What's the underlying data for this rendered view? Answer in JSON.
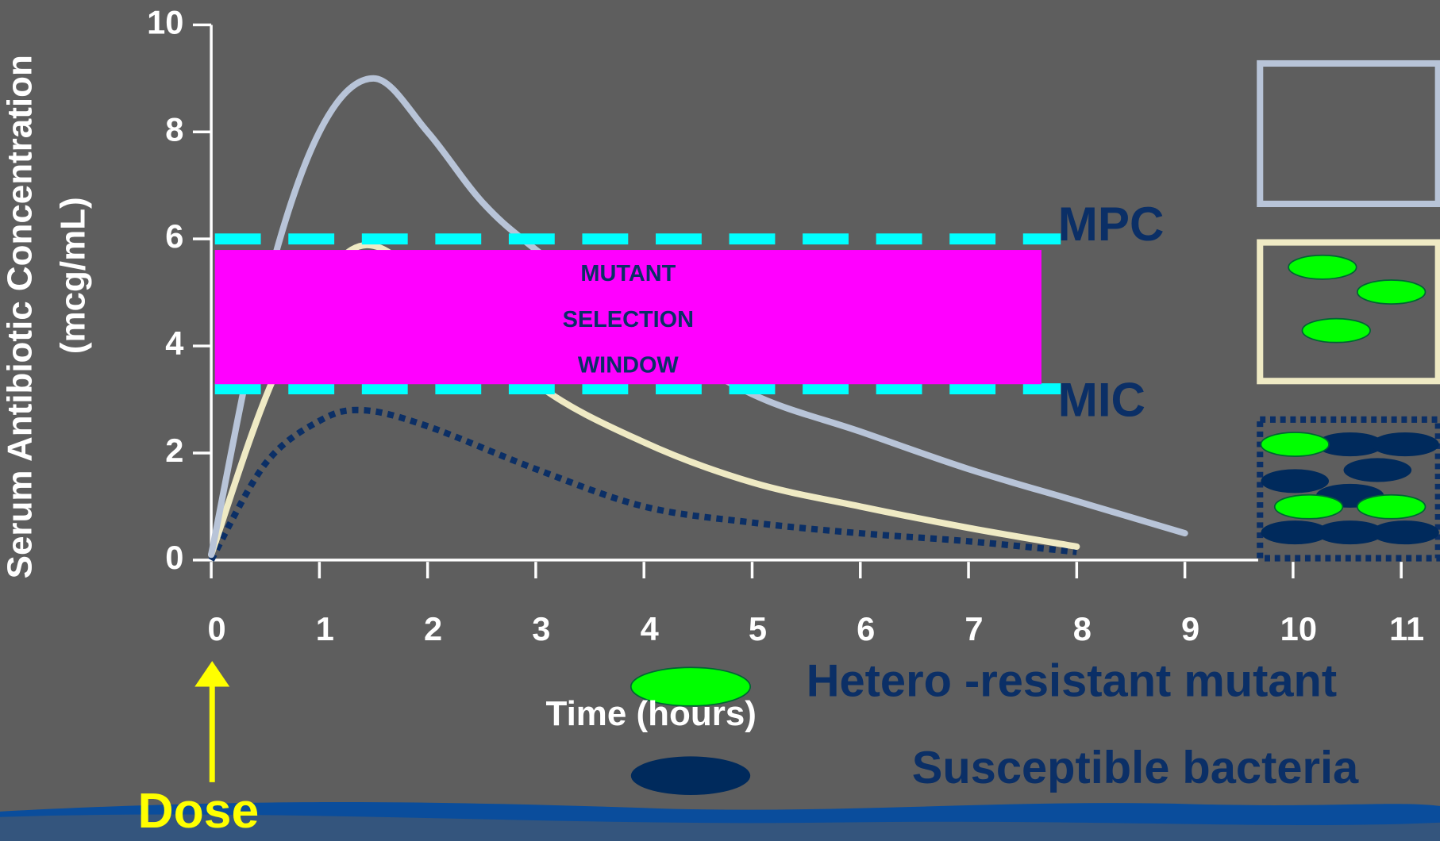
{
  "chart_data": {
    "type": "line",
    "y_label": [
      "Serum Antibiotic Concentration",
      "(mcg/mL)"
    ],
    "x_label": "Time (hours)",
    "xlim": [
      0,
      11.5
    ],
    "ylim": [
      0,
      10
    ],
    "xticks": [
      0,
      1,
      2,
      3,
      4,
      5,
      6,
      7,
      8,
      9,
      10,
      11
    ],
    "yticks": [
      0,
      2,
      4,
      6,
      8,
      10
    ],
    "series": [
      {
        "color": "#b8c4d8",
        "dash": "solid",
        "x": [
          0,
          0.5,
          1,
          1.5,
          2,
          2.5,
          3,
          4,
          5,
          6,
          7,
          8,
          9
        ],
        "values": [
          0.1,
          5,
          8,
          9,
          8,
          6.7,
          5.8,
          4.3,
          3.1,
          2.4,
          1.7,
          1.1,
          0.5
        ]
      },
      {
        "color": "#efeac4",
        "dash": "solid",
        "x": [
          0,
          0.6,
          1.3,
          2,
          3,
          4,
          5,
          6,
          7,
          8
        ],
        "values": [
          0.1,
          3.5,
          5.8,
          5.2,
          3.3,
          2.2,
          1.45,
          1.0,
          0.6,
          0.25
        ]
      },
      {
        "color": "#0b2f66",
        "dash": "dotted",
        "x": [
          0,
          0.5,
          1,
          1.4,
          2,
          3,
          4,
          5,
          6,
          7,
          8
        ],
        "values": [
          0,
          1.8,
          2.6,
          2.8,
          2.5,
          1.7,
          1.0,
          0.7,
          0.5,
          0.35,
          0.15
        ]
      }
    ],
    "thresholds": [
      {
        "label": "MPC",
        "value": 6
      },
      {
        "label": "MIC",
        "value": 3.2
      }
    ],
    "window_label": [
      "MUTANT",
      "SELECTION",
      "WINDOW"
    ],
    "legend": [
      "Hetero -resistant mutant",
      "Susceptible bacteria"
    ],
    "dose_label": "Dose"
  }
}
